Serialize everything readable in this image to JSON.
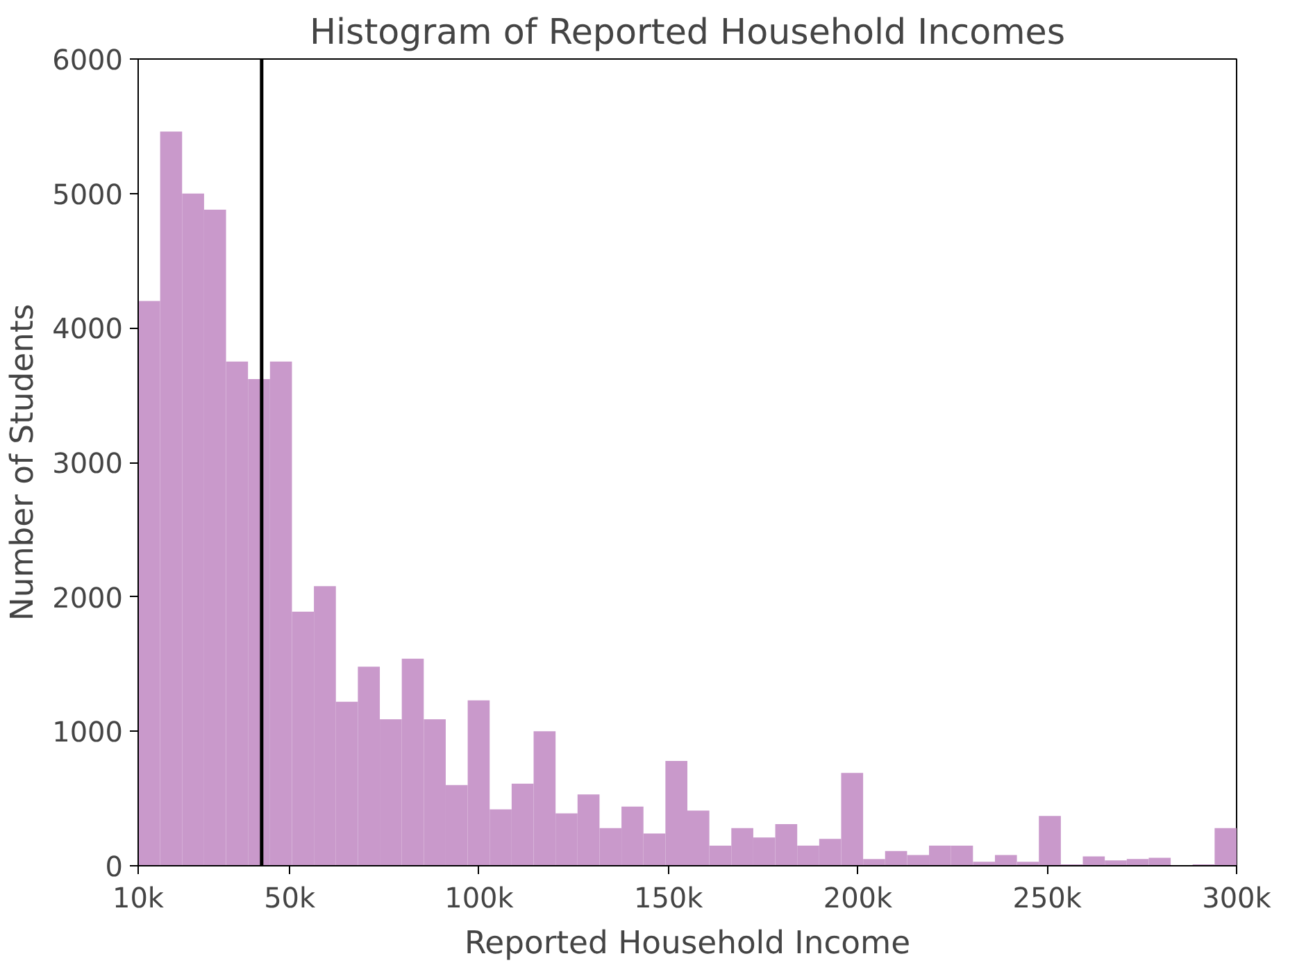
{
  "chart_data": {
    "type": "histogram",
    "title": "Histogram of Reported Household Incomes",
    "xlabel": "Reported Household Income",
    "ylabel": "Number of Students",
    "color": "#c999cb",
    "bins": [
      10,
      15.8,
      21.6,
      27.4,
      33.2,
      39,
      44.8,
      50.6,
      56.4,
      62.2,
      68,
      73.8,
      79.6,
      85.4,
      91.2,
      97,
      102.8,
      108.6,
      114.4,
      120.2,
      126,
      131.8,
      137.6,
      143.4,
      149.2,
      155,
      160.8,
      166.6,
      172.4,
      178.2,
      184,
      189.8,
      195.6,
      201.4,
      207.2,
      213,
      218.8,
      224.6,
      230.4,
      236.2,
      242,
      247.8,
      253.6,
      259.4,
      265.2,
      271,
      276.8,
      282.6,
      288.4,
      294.2,
      300
    ],
    "values": [
      4200,
      5460,
      5000,
      4880,
      3750,
      3620,
      3750,
      1890,
      2080,
      1220,
      1480,
      1090,
      1540,
      1090,
      600,
      1230,
      420,
      610,
      1000,
      390,
      530,
      280,
      440,
      240,
      780,
      410,
      150,
      280,
      210,
      310,
      150,
      200,
      690,
      50,
      110,
      80,
      150,
      150,
      30,
      80,
      30,
      370,
      10,
      70,
      40,
      50,
      60,
      0,
      10,
      280
    ],
    "xlim": [
      10,
      300
    ],
    "xticks": [
      {
        "value": 10,
        "label": "10k"
      },
      {
        "value": 50,
        "label": "50k"
      },
      {
        "value": 100,
        "label": "100k"
      },
      {
        "value": 150,
        "label": "150k"
      },
      {
        "value": 200,
        "label": "200k"
      },
      {
        "value": 250,
        "label": "250k"
      },
      {
        "value": 300,
        "label": "300k"
      }
    ],
    "ylim": [
      0,
      6000
    ],
    "yticks": [
      0,
      1000,
      2000,
      3000,
      4000,
      5000,
      6000
    ],
    "grid": false,
    "ref_lines": [
      {
        "axis": "x",
        "value": 42.6,
        "color": "#000000"
      }
    ]
  }
}
